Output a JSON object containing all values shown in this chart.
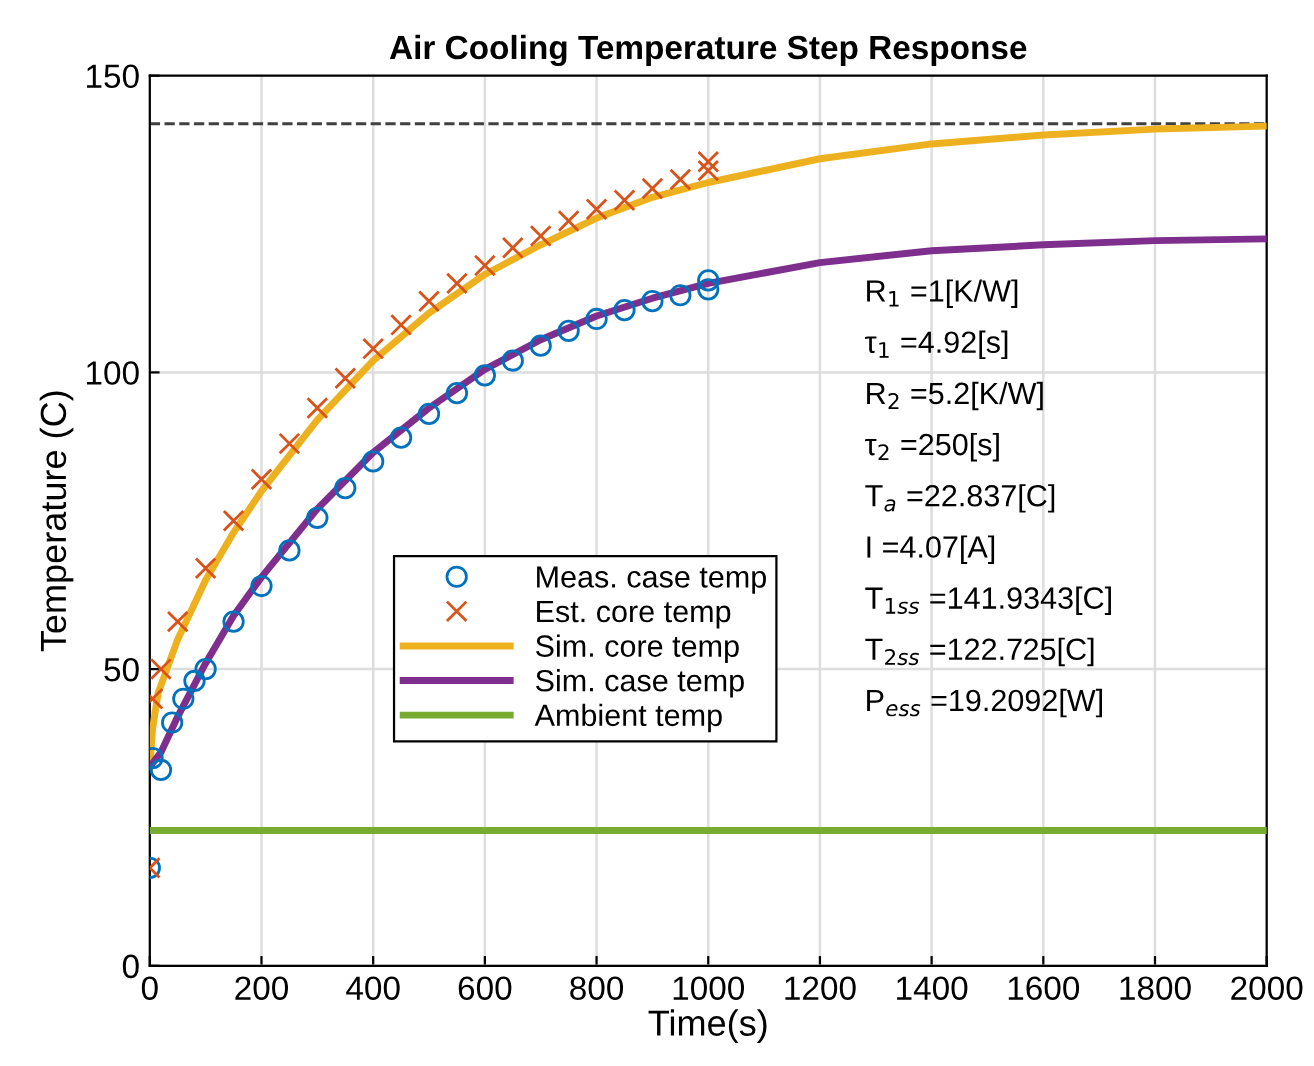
{
  "chart_data": {
    "type": "line",
    "title": "Air Cooling Temperature Step Response",
    "xlabel": "Time(s)",
    "ylabel": "Temperature (C)",
    "xlim": [
      0,
      2000
    ],
    "xticks": [
      0,
      200,
      400,
      600,
      800,
      1000,
      1200,
      1400,
      1600,
      1800,
      2000
    ],
    "ylim": [
      0,
      150
    ],
    "yticks": [
      0,
      50,
      100,
      150
    ],
    "grid": true,
    "legend": "lower left",
    "series": [
      {
        "name": "Meas. case temp",
        "type": "scatter",
        "marker": "circle",
        "color": "#0072bd",
        "x": [
          0,
          5,
          20,
          40,
          60,
          80,
          100,
          150,
          200,
          250,
          300,
          350,
          400,
          450,
          500,
          550,
          600,
          650,
          700,
          750,
          800,
          850,
          900,
          950,
          1000,
          1000
        ],
        "values": [
          16.5,
          35,
          33,
          41,
          45,
          48,
          50,
          58,
          64,
          70,
          75.5,
          80.5,
          85,
          89,
          93,
          96.5,
          99.5,
          102,
          104.5,
          107,
          109,
          110.5,
          112,
          113,
          114,
          115.5
        ]
      },
      {
        "name": "Est. core temp",
        "type": "scatter",
        "marker": "cross",
        "color": "#d95319",
        "x": [
          0,
          5,
          20,
          50,
          100,
          150,
          200,
          250,
          300,
          350,
          400,
          450,
          500,
          550,
          600,
          650,
          700,
          750,
          800,
          850,
          900,
          950,
          1000,
          1000
        ],
        "values": [
          16.5,
          45,
          50,
          58,
          67,
          75,
          82,
          88,
          94,
          99,
          104,
          108,
          112,
          115,
          118,
          121,
          123,
          125.5,
          127.5,
          129,
          131,
          132.5,
          134,
          135.5
        ]
      },
      {
        "name": "Sim. core temp",
        "color": "#edb120",
        "x": [
          0,
          5,
          15,
          50,
          100,
          150,
          200,
          300,
          400,
          500,
          600,
          700,
          800,
          900,
          1000,
          1200,
          1400,
          1600,
          1800,
          2000
        ],
        "values": [
          33.5,
          40,
          46,
          55,
          65,
          73,
          80,
          92,
          102,
          110,
          116.5,
          121.5,
          126,
          129.5,
          132,
          136,
          138.5,
          140,
          141,
          141.5
        ]
      },
      {
        "name": "Sim. case temp",
        "color": "#7e2f8e",
        "x": [
          0,
          20,
          50,
          100,
          150,
          200,
          300,
          400,
          500,
          600,
          700,
          800,
          900,
          1000,
          1200,
          1400,
          1600,
          1800,
          2000
        ],
        "values": [
          33.5,
          36,
          42,
          51,
          59,
          65.5,
          77,
          86.5,
          94,
          100.5,
          105.5,
          109.5,
          112.5,
          115,
          118.5,
          120.5,
          121.5,
          122.2,
          122.5
        ]
      },
      {
        "name": "Ambient temp",
        "color": "#77ac30",
        "x": [
          0,
          2000
        ],
        "values": [
          22.8,
          22.8
        ]
      }
    ],
    "ref_lines": [
      {
        "axis": "y",
        "value": 141.9,
        "color": "#404040",
        "line_style": "dashed"
      }
    ],
    "annotations": [
      "R$_{1}$ =1[K/W]",
      "τ$_{1}$ =4.92[s]",
      "R$_{2}$ =5.2[K/W]",
      "τ$_{2}$ =250[s]",
      "T$_{a}$ =22.837[C]",
      "I =4.07[A]",
      "T$_{1ss}$ =141.9343[C]",
      "T$_{2ss}$ =122.725[C]",
      "P$_{ess}$ =19.2092[W]"
    ]
  }
}
